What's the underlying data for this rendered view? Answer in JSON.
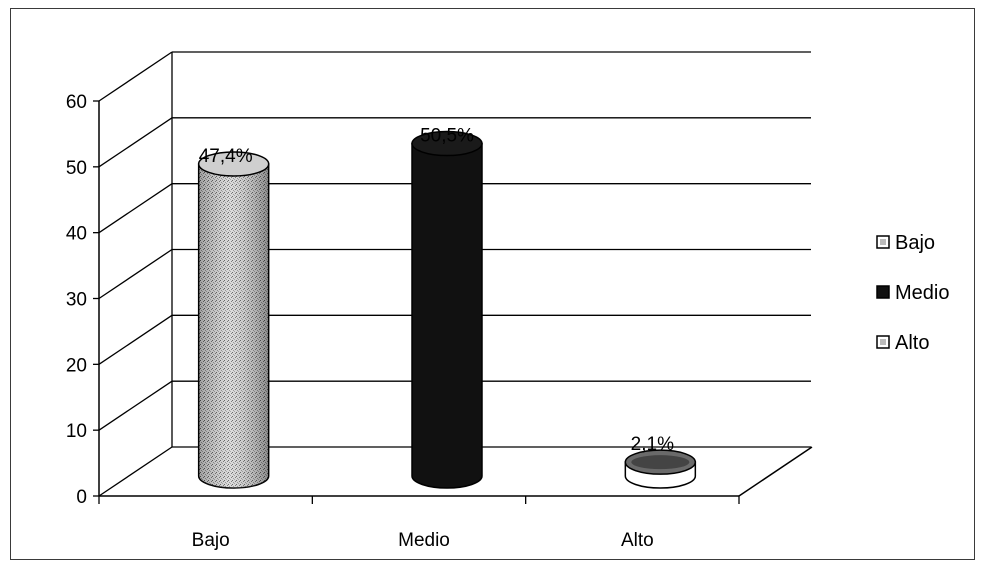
{
  "chart_data": {
    "type": "bar",
    "style": "3d-cylinder",
    "categories": [
      "Bajo",
      "Medio",
      "Alto"
    ],
    "values": [
      47.4,
      50.5,
      2.1
    ],
    "data_labels": [
      "47,4%",
      "50,5%",
      "2,1%"
    ],
    "yticks": [
      0,
      10,
      20,
      30,
      40,
      50,
      60
    ],
    "ylim": [
      0,
      60
    ],
    "grid": true,
    "legend": {
      "position": "right",
      "entries": [
        "Bajo",
        "Medio",
        "Alto"
      ]
    },
    "colors": {
      "Bajo": "#bdbdbd",
      "Medio": "#111111",
      "Alto": "#f2f2f2"
    },
    "title": "",
    "xlabel": "",
    "ylabel": ""
  }
}
